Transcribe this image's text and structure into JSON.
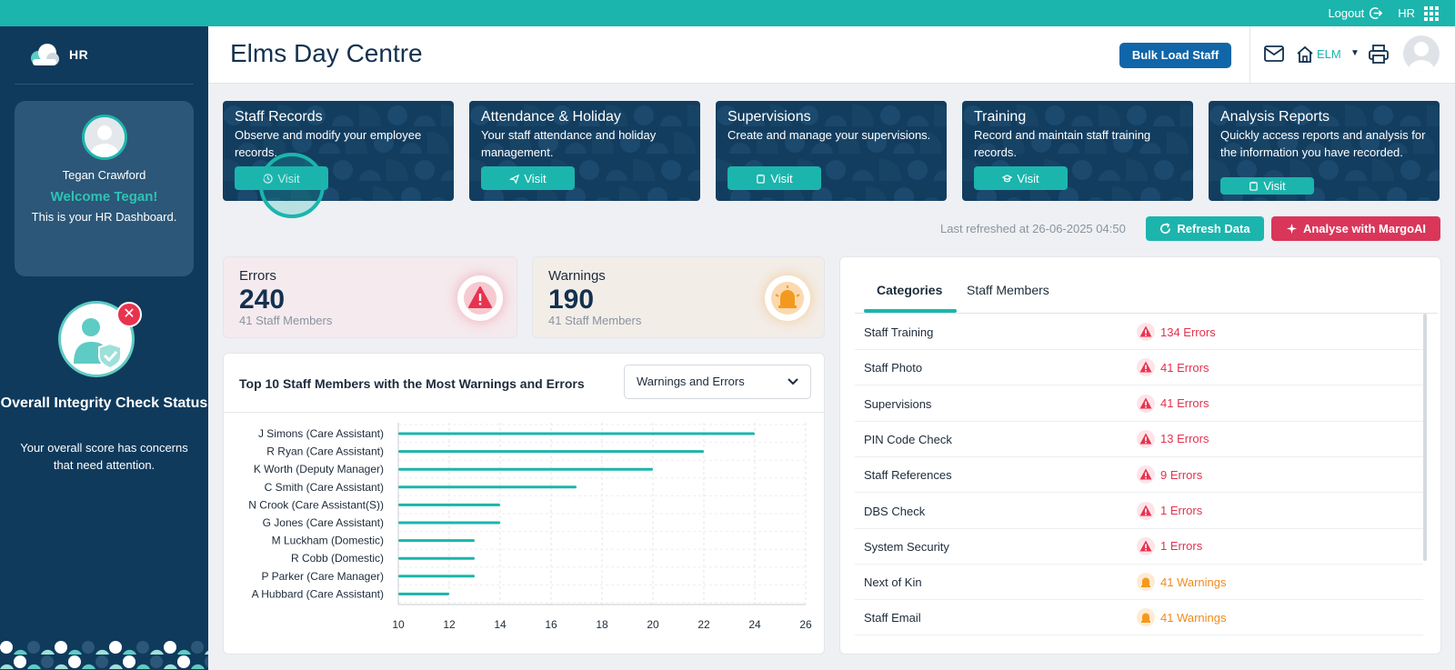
{
  "topbar": {
    "logout_label": "Logout",
    "hr_label": "HR"
  },
  "sidebar": {
    "brand": "HR",
    "user_name": "Tegan Crawford",
    "welcome": "Welcome Tegan!",
    "dashboard_text": "This is your HR Dashboard.",
    "integrity_title": "Overall Integrity Check Status",
    "integrity_text": "Your overall score has concerns that need attention."
  },
  "header": {
    "title": "Elms Day Centre",
    "bulk_load_label": "Bulk Load Staff",
    "home_label": "ELM"
  },
  "modules": [
    {
      "title": "Staff Records",
      "description": "Observe and modify your employee records.",
      "visit_label": "Visit",
      "icon": "history-icon"
    },
    {
      "title": "Attendance & Holiday",
      "description": "Your staff attendance and holiday management.",
      "visit_label": "Visit",
      "icon": "plane-icon"
    },
    {
      "title": "Supervisions",
      "description": "Create and manage your supervisions.",
      "visit_label": "Visit",
      "icon": "clipboard-icon"
    },
    {
      "title": "Training",
      "description": "Record and maintain staff training records.",
      "visit_label": "Visit",
      "icon": "graduation-cap-icon"
    },
    {
      "title": "Analysis Reports",
      "description": "Quickly access reports and analysis for the information you have recorded.",
      "visit_label": "Visit",
      "icon": "clipboard-icon"
    }
  ],
  "refresh": {
    "last_refreshed": "Last refreshed at 26-06-2025 04:50",
    "refresh_label": "Refresh Data",
    "analyse_label": "Analyse with MargoAI"
  },
  "stats": {
    "errors": {
      "label": "Errors",
      "value": "240",
      "sub": "41 Staff Members",
      "color": "#e8334f"
    },
    "warnings": {
      "label": "Warnings",
      "value": "190",
      "sub": "41 Staff Members",
      "color": "#f39a1e"
    }
  },
  "chart_panel": {
    "title": "Top 10 Staff Members with the Most Warnings and Errors",
    "filter_value": "Warnings and Errors"
  },
  "chart_data": {
    "type": "bar",
    "orientation": "horizontal",
    "categories": [
      "J Simons (Care Assistant)",
      "R Ryan (Care Assistant)",
      "K Worth (Deputy Manager)",
      "C Smith (Care Assistant)",
      "N Crook (Care Assistant(S))",
      "G Jones (Care Assistant)",
      "M Luckham (Domestic)",
      "R Cobb (Domestic)",
      "P Parker (Care Manager)",
      "A Hubbard (Care Assistant)"
    ],
    "values": [
      24,
      22,
      20,
      17,
      14,
      14,
      13,
      13,
      13,
      12
    ],
    "xlim": [
      10,
      26
    ],
    "xticks": [
      10,
      12,
      14,
      16,
      18,
      20,
      22,
      24,
      26
    ],
    "grid": true,
    "bar_color": "#1bb5ad"
  },
  "categories_panel": {
    "tabs": [
      "Categories",
      "Staff Members"
    ],
    "rows": [
      {
        "name": "Staff Training",
        "value": "134 Errors",
        "kind": "error"
      },
      {
        "name": "Staff Photo",
        "value": "41 Errors",
        "kind": "error"
      },
      {
        "name": "Supervisions",
        "value": "41 Errors",
        "kind": "error"
      },
      {
        "name": "PIN Code Check",
        "value": "13 Errors",
        "kind": "error"
      },
      {
        "name": "Staff References",
        "value": "9 Errors",
        "kind": "error"
      },
      {
        "name": "DBS Check",
        "value": "1 Errors",
        "kind": "error"
      },
      {
        "name": "System Security",
        "value": "1 Errors",
        "kind": "error"
      },
      {
        "name": "Next of Kin",
        "value": "41 Warnings",
        "kind": "warning"
      },
      {
        "name": "Staff Email",
        "value": "41 Warnings",
        "kind": "warning"
      }
    ]
  }
}
